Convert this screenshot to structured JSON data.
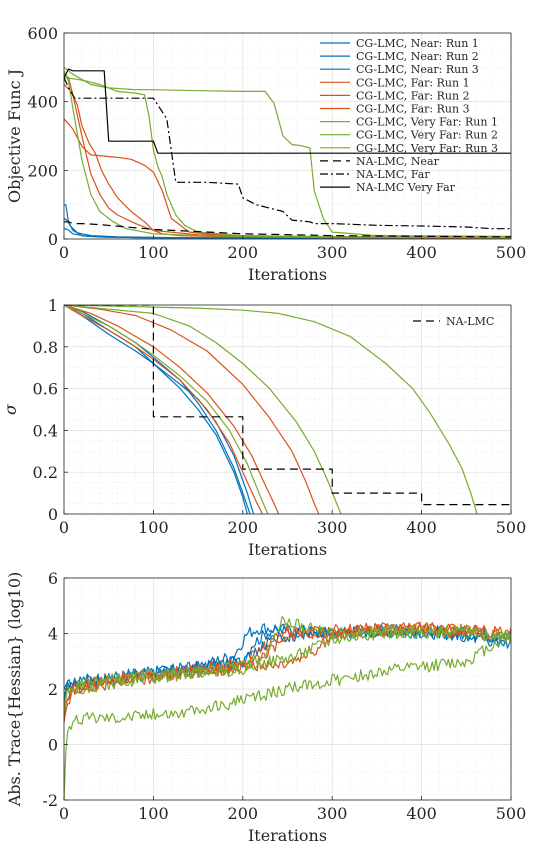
{
  "chart_data": [
    {
      "type": "line",
      "xlabel": "Iterations",
      "ylabel": "Objective Func J",
      "xlim": [
        0,
        500
      ],
      "ylim": [
        0,
        600
      ],
      "xticks": [
        0,
        100,
        200,
        300,
        400,
        500
      ],
      "yticks": [
        0,
        200,
        400,
        600
      ],
      "grid": true,
      "legend_position": "top-right",
      "colors": {
        "near": "#0072BD",
        "far": "#D95319",
        "very_far": "#77AC30",
        "na": "#000000"
      },
      "series": [
        {
          "name": "CG-LMC, Near: Run 1",
          "group": "near",
          "dash": "solid",
          "x": [
            0,
            2,
            5,
            10,
            20,
            40,
            80,
            150,
            250,
            500
          ],
          "y": [
            100,
            100,
            50,
            25,
            10,
            6,
            4,
            3,
            2,
            2
          ]
        },
        {
          "name": "CG-LMC, Near: Run 2",
          "group": "near",
          "dash": "solid",
          "x": [
            0,
            3,
            8,
            15,
            30,
            60,
            120,
            250,
            500
          ],
          "y": [
            60,
            55,
            35,
            18,
            10,
            6,
            4,
            3,
            2
          ]
        },
        {
          "name": "CG-LMC, Near: Run 3",
          "group": "near",
          "dash": "solid",
          "x": [
            0,
            4,
            10,
            25,
            50,
            100,
            200,
            500
          ],
          "y": [
            30,
            28,
            15,
            8,
            5,
            4,
            3,
            2
          ]
        },
        {
          "name": "CG-LMC, Far: Run 1",
          "group": "far",
          "dash": "solid",
          "x": [
            0,
            8,
            15,
            20,
            28,
            35,
            42,
            50,
            60,
            75,
            90,
            100,
            110,
            130,
            160,
            200,
            300,
            500
          ],
          "y": [
            450,
            430,
            390,
            330,
            280,
            250,
            200,
            160,
            120,
            80,
            50,
            25,
            15,
            10,
            8,
            6,
            4,
            3
          ]
        },
        {
          "name": "CG-LMC, Far: Run 2",
          "group": "far",
          "dash": "solid",
          "x": [
            0,
            10,
            20,
            30,
            40,
            50,
            60,
            75,
            90,
            100,
            110,
            120,
            140,
            180,
            250,
            500
          ],
          "y": [
            350,
            320,
            270,
            245,
            243,
            240,
            238,
            232,
            215,
            195,
            140,
            60,
            20,
            10,
            6,
            4
          ]
        },
        {
          "name": "CG-LMC, Far: Run 3",
          "group": "far",
          "dash": "solid",
          "x": [
            0,
            5,
            10,
            20,
            30,
            40,
            50,
            60,
            80,
            100,
            150,
            250,
            500
          ],
          "y": [
            480,
            470,
            420,
            300,
            190,
            130,
            90,
            70,
            45,
            25,
            12,
            8,
            5
          ]
        },
        {
          "name": "CG-LMC, Very Far: Run 1",
          "group": "very_far",
          "dash": "solid",
          "x": [
            0,
            10,
            30,
            50,
            80,
            100,
            150,
            200,
            225,
            235,
            245,
            255,
            265,
            275,
            280,
            290,
            300,
            350,
            500
          ],
          "y": [
            500,
            480,
            450,
            440,
            435,
            435,
            432,
            430,
            430,
            395,
            300,
            275,
            272,
            265,
            140,
            60,
            20,
            10,
            8
          ]
        },
        {
          "name": "CG-LMC, Very Far: Run 2",
          "group": "very_far",
          "dash": "solid",
          "x": [
            0,
            15,
            25,
            40,
            60,
            80,
            90,
            95,
            100,
            105,
            110,
            115,
            125,
            135,
            150,
            200,
            300,
            500
          ],
          "y": [
            470,
            465,
            460,
            450,
            430,
            425,
            420,
            360,
            260,
            210,
            180,
            130,
            70,
            40,
            20,
            10,
            6,
            4
          ]
        },
        {
          "name": "CG-LMC, Very Far: Run 3",
          "group": "very_far",
          "dash": "solid",
          "x": [
            0,
            5,
            10,
            20,
            30,
            40,
            55,
            70,
            100,
            150,
            250,
            500
          ],
          "y": [
            490,
            460,
            380,
            230,
            130,
            80,
            50,
            30,
            15,
            10,
            6,
            4
          ]
        },
        {
          "name": "NA-LMC, Near",
          "group": "na",
          "dash": "dashed",
          "x": [
            0,
            5,
            10,
            20,
            40,
            100,
            200,
            300,
            400,
            500
          ],
          "y": [
            50,
            50,
            45,
            45,
            42,
            28,
            15,
            10,
            8,
            6
          ]
        },
        {
          "name": "NA-LMC, Far",
          "group": "na",
          "dash": "dashdot",
          "x": [
            0,
            5,
            12,
            60,
            100,
            115,
            125,
            135,
            160,
            195,
            200,
            215,
            245,
            255,
            275,
            280,
            300,
            350,
            400,
            450,
            480,
            500
          ],
          "y": [
            470,
            440,
            410,
            410,
            410,
            350,
            165,
            165,
            165,
            160,
            120,
            100,
            80,
            55,
            50,
            45,
            45,
            40,
            38,
            35,
            30,
            30
          ]
        },
        {
          "name": "NA-LMC Very Far",
          "group": "na",
          "dash": "solid",
          "x": [
            0,
            5,
            10,
            15,
            45,
            50,
            100,
            105,
            300,
            500
          ],
          "y": [
            470,
            495,
            490,
            490,
            490,
            285,
            285,
            250,
            250,
            250
          ]
        }
      ]
    },
    {
      "type": "line",
      "xlabel": "Iterations",
      "ylabel": "σ",
      "xlim": [
        0,
        500
      ],
      "ylim": [
        0,
        1
      ],
      "xticks": [
        0,
        100,
        200,
        300,
        400,
        500
      ],
      "yticks": [
        0,
        0.2,
        0.4,
        0.6,
        0.8,
        1
      ],
      "grid": true,
      "legend_position": "top-right",
      "series": [
        {
          "group": "near",
          "dash": "solid",
          "x": [
            0,
            20,
            50,
            80,
            100,
            130,
            150,
            170,
            190,
            200,
            205
          ],
          "y": [
            1,
            0.96,
            0.88,
            0.8,
            0.72,
            0.6,
            0.5,
            0.38,
            0.2,
            0.08,
            0
          ]
        },
        {
          "group": "near",
          "dash": "solid",
          "x": [
            0,
            20,
            50,
            80,
            100,
            130,
            150,
            170,
            190,
            200,
            208
          ],
          "y": [
            1,
            0.97,
            0.9,
            0.82,
            0.75,
            0.64,
            0.53,
            0.4,
            0.22,
            0.1,
            0
          ]
        },
        {
          "group": "near",
          "dash": "solid",
          "x": [
            0,
            20,
            50,
            80,
            100,
            130,
            150,
            170,
            190,
            205,
            212
          ],
          "y": [
            1,
            0.95,
            0.86,
            0.78,
            0.72,
            0.62,
            0.55,
            0.44,
            0.28,
            0.1,
            0
          ]
        },
        {
          "group": "far",
          "dash": "solid",
          "x": [
            0,
            30,
            60,
            100,
            130,
            160,
            190,
            210,
            225,
            235,
            240
          ],
          "y": [
            1,
            0.96,
            0.9,
            0.8,
            0.7,
            0.58,
            0.42,
            0.28,
            0.14,
            0.05,
            0
          ]
        },
        {
          "group": "far",
          "dash": "solid",
          "x": [
            0,
            40,
            80,
            120,
            160,
            200,
            230,
            255,
            270,
            280,
            285
          ],
          "y": [
            1,
            0.98,
            0.95,
            0.88,
            0.78,
            0.62,
            0.46,
            0.3,
            0.16,
            0.05,
            0
          ]
        },
        {
          "group": "far",
          "dash": "solid",
          "x": [
            0,
            20,
            50,
            80,
            100,
            130,
            160,
            185,
            200,
            215,
            222
          ],
          "y": [
            1,
            0.95,
            0.88,
            0.8,
            0.74,
            0.64,
            0.5,
            0.34,
            0.2,
            0.06,
            0
          ]
        },
        {
          "group": "very_far",
          "dash": "solid",
          "x": [
            0,
            50,
            100,
            150,
            200,
            240,
            280,
            320,
            360,
            390,
            410,
            430,
            445,
            455,
            462
          ],
          "y": [
            1,
            0.995,
            0.99,
            0.985,
            0.975,
            0.96,
            0.92,
            0.85,
            0.72,
            0.6,
            0.48,
            0.34,
            0.22,
            0.1,
            0
          ]
        },
        {
          "group": "very_far",
          "dash": "solid",
          "x": [
            0,
            50,
            100,
            140,
            170,
            200,
            230,
            260,
            280,
            295,
            305,
            310
          ],
          "y": [
            1,
            0.98,
            0.96,
            0.9,
            0.82,
            0.72,
            0.6,
            0.44,
            0.3,
            0.16,
            0.05,
            0
          ]
        },
        {
          "group": "very_far",
          "dash": "solid",
          "x": [
            0,
            20,
            50,
            80,
            100,
            130,
            160,
            185,
            205,
            220,
            228
          ],
          "y": [
            1,
            0.96,
            0.9,
            0.82,
            0.76,
            0.66,
            0.54,
            0.4,
            0.24,
            0.08,
            0
          ]
        },
        {
          "name": "NA-LMC",
          "group": "na",
          "dash": "dashed",
          "x": [
            0,
            100,
            100,
            200,
            200,
            300,
            300,
            400,
            400,
            500
          ],
          "y": [
            1,
            1,
            0.465,
            0.465,
            0.215,
            0.215,
            0.1,
            0.1,
            0.045,
            0.045
          ]
        }
      ]
    },
    {
      "type": "line",
      "xlabel": "Iterations",
      "ylabel": "Abs. Trace{Hessian} (log10)",
      "xlim": [
        0,
        500
      ],
      "ylim": [
        -2,
        6
      ],
      "xticks": [
        0,
        100,
        200,
        300,
        400,
        500
      ],
      "yticks": [
        -2,
        0,
        2,
        4,
        6
      ],
      "grid": true,
      "series": [
        {
          "group": "near",
          "x": [
            0,
            3,
            10,
            50,
            100,
            150,
            200,
            210,
            230,
            260,
            300,
            350,
            400,
            450,
            500
          ],
          "y": [
            1.6,
            2.1,
            2.2,
            2.4,
            2.6,
            2.8,
            3.0,
            3.6,
            4.1,
            4.1,
            4.0,
            4.1,
            4.1,
            4.0,
            3.8
          ]
        },
        {
          "group": "near",
          "x": [
            0,
            3,
            10,
            50,
            100,
            150,
            200,
            215,
            240,
            280,
            330,
            400,
            450,
            500
          ],
          "y": [
            1.8,
            2.0,
            2.1,
            2.4,
            2.5,
            2.7,
            2.9,
            3.4,
            3.9,
            4.0,
            4.1,
            4.0,
            3.9,
            3.6
          ]
        },
        {
          "group": "near",
          "x": [
            0,
            3,
            10,
            50,
            100,
            150,
            190,
            205,
            220,
            260,
            300,
            360,
            420,
            500
          ],
          "y": [
            2.0,
            2.2,
            2.3,
            2.4,
            2.6,
            2.8,
            3.2,
            4.0,
            4.2,
            4.1,
            4.0,
            4.1,
            4.0,
            3.9
          ]
        },
        {
          "group": "far",
          "x": [
            0,
            3,
            10,
            50,
            100,
            150,
            200,
            240,
            260,
            300,
            350,
            400,
            450,
            500
          ],
          "y": [
            0.8,
            1.4,
            1.9,
            2.2,
            2.5,
            2.6,
            2.8,
            3.6,
            4.0,
            4.1,
            4.2,
            4.2,
            4.1,
            4.0
          ]
        },
        {
          "group": "far",
          "x": [
            0,
            3,
            10,
            50,
            100,
            150,
            200,
            250,
            280,
            300,
            350,
            400,
            450,
            500
          ],
          "y": [
            1.2,
            1.6,
            2.0,
            2.3,
            2.4,
            2.6,
            2.8,
            3.0,
            3.4,
            3.9,
            4.1,
            4.2,
            4.1,
            4.0
          ]
        },
        {
          "group": "far",
          "x": [
            0,
            3,
            10,
            50,
            100,
            150,
            200,
            220,
            250,
            300,
            350,
            400,
            450,
            500
          ],
          "y": [
            1.0,
            1.7,
            2.0,
            2.3,
            2.5,
            2.7,
            2.9,
            3.5,
            4.1,
            4.0,
            4.1,
            4.2,
            4.0,
            3.9
          ]
        },
        {
          "group": "very_far",
          "x": [
            0,
            3,
            10,
            30,
            60,
            100,
            150,
            200,
            250,
            300,
            350,
            400,
            450,
            480,
            500
          ],
          "y": [
            -2.0,
            0.6,
            0.8,
            1.0,
            1.0,
            1.1,
            1.2,
            1.6,
            2.0,
            2.3,
            2.6,
            2.8,
            3.0,
            3.6,
            4.0
          ]
        },
        {
          "group": "very_far",
          "x": [
            0,
            3,
            10,
            50,
            100,
            150,
            200,
            230,
            245,
            270,
            300,
            350,
            400,
            450,
            500
          ],
          "y": [
            1.2,
            1.8,
            2.0,
            2.2,
            2.4,
            2.6,
            2.7,
            3.5,
            4.5,
            4.2,
            4.0,
            4.1,
            4.0,
            4.1,
            3.8
          ]
        },
        {
          "group": "very_far",
          "x": [
            0,
            3,
            10,
            50,
            100,
            150,
            200,
            260,
            300,
            350,
            400,
            450,
            500
          ],
          "y": [
            1.4,
            1.9,
            2.1,
            2.3,
            2.5,
            2.6,
            2.8,
            3.2,
            3.8,
            4.0,
            4.1,
            4.0,
            3.9
          ]
        }
      ]
    }
  ]
}
